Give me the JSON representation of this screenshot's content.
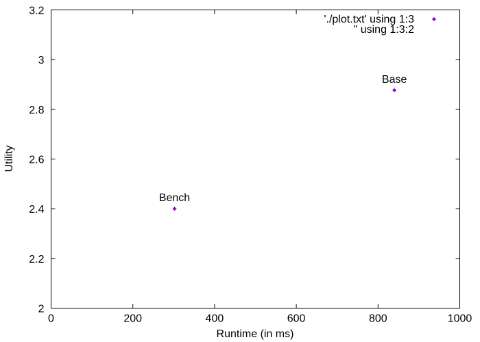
{
  "chart_data": {
    "type": "scatter",
    "xlabel": "Runtime (in ms)",
    "ylabel": "Utility",
    "xlim": [
      0,
      1000
    ],
    "ylim": [
      2,
      3.2
    ],
    "xticks": [
      0,
      200,
      400,
      600,
      800,
      1000
    ],
    "yticks": [
      2,
      2.2,
      2.4,
      2.6,
      2.8,
      3,
      3.2
    ],
    "xtick_labels": [
      "0",
      "200",
      "400",
      "600",
      "800",
      "1000"
    ],
    "ytick_labels": [
      "2",
      "2.2",
      "2.4",
      "2.6",
      "2.8",
      "3",
      "3.2"
    ],
    "grid": false,
    "legend_position": "top-right",
    "point_color": "#9400d3",
    "series": [
      {
        "name": "'./plot.txt' using 1:3",
        "points": [
          {
            "x": 302,
            "y": 2.4
          },
          {
            "x": 840,
            "y": 2.877
          }
        ]
      },
      {
        "name": "'' using 1:3:2",
        "labels": [
          {
            "x": 302,
            "y": 2.4,
            "text": "Bench"
          },
          {
            "x": 840,
            "y": 2.877,
            "text": "Base"
          }
        ]
      }
    ]
  }
}
